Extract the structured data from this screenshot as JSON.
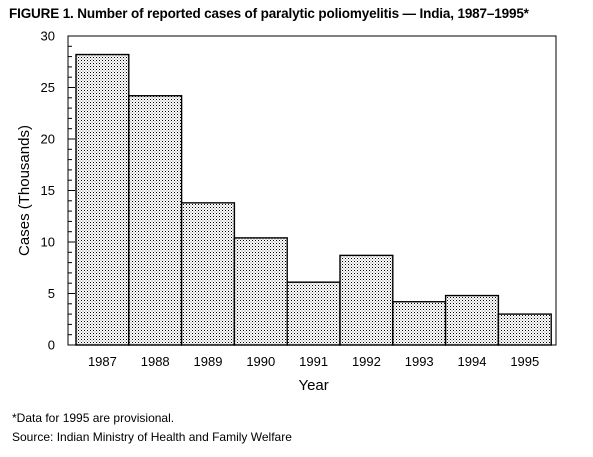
{
  "figure": {
    "title": "FIGURE 1. Number of reported cases of paralytic poliomyelitis — India, 1987–1995*"
  },
  "chart_data": {
    "type": "bar",
    "categories": [
      "1987",
      "1988",
      "1989",
      "1990",
      "1991",
      "1992",
      "1993",
      "1994",
      "1995"
    ],
    "values": [
      28.2,
      24.2,
      13.8,
      10.4,
      6.1,
      8.7,
      4.2,
      4.8,
      3.0
    ],
    "title": "",
    "xlabel": "Year",
    "ylabel": "Cases (Thousands)",
    "ylim": [
      0,
      30
    ],
    "yticks": [
      0,
      5,
      10,
      15,
      20,
      25,
      30
    ],
    "grid": false,
    "legend": "none",
    "bar_fill": "stippled dot pattern",
    "colors": {
      "bar_fill": "#d9d9d9",
      "bar_dot": "#000000",
      "outline": "#000000"
    }
  },
  "footnotes": {
    "provisional": "*Data for 1995 are provisional.",
    "source": "Source: Indian Ministry of Health and Family Welfare"
  }
}
